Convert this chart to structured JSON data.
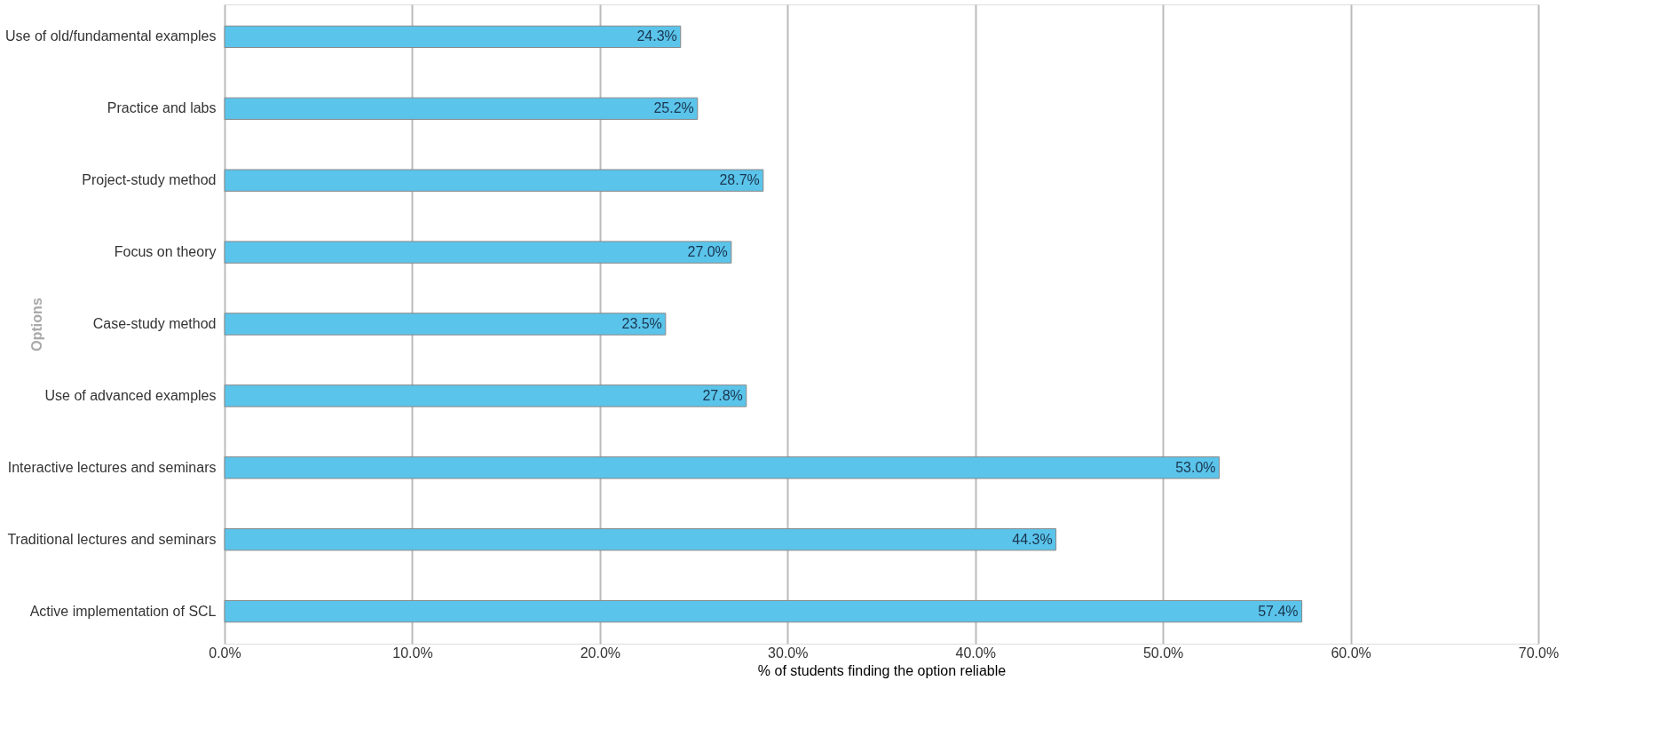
{
  "chart_data": {
    "type": "bar",
    "orientation": "horizontal",
    "xlabel": "% of students finding the option reliable",
    "ylabel": "Options",
    "categories": [
      "Use of old/fundamental examples",
      "Practice and labs",
      "Project-study method",
      "Focus on theory",
      "Case-study method",
      "Use of advanced examples",
      "Interactive lectures and seminars",
      "Traditional lectures and seminars",
      "Active implementation of SCL"
    ],
    "values": [
      24.3,
      25.2,
      28.7,
      27.0,
      23.5,
      27.8,
      53.0,
      44.3,
      57.4
    ],
    "value_labels": [
      "24.3%",
      "25.2%",
      "28.7%",
      "27.0%",
      "23.5%",
      "27.8%",
      "53.0%",
      "44.3%",
      "57.4%"
    ],
    "color": "#5bc4ea",
    "xlim": [
      0,
      70
    ],
    "xticks": [
      {
        "value": 0,
        "label": "0.0%"
      },
      {
        "value": 10,
        "label": "10.0%"
      },
      {
        "value": 20,
        "label": "20.0%"
      },
      {
        "value": 30,
        "label": "30.0%"
      },
      {
        "value": 40,
        "label": "40.0%"
      },
      {
        "value": 50,
        "label": "50.0%"
      },
      {
        "value": 60,
        "label": "60.0%"
      },
      {
        "value": 70,
        "label": "70.0%"
      }
    ],
    "grid": "x"
  }
}
